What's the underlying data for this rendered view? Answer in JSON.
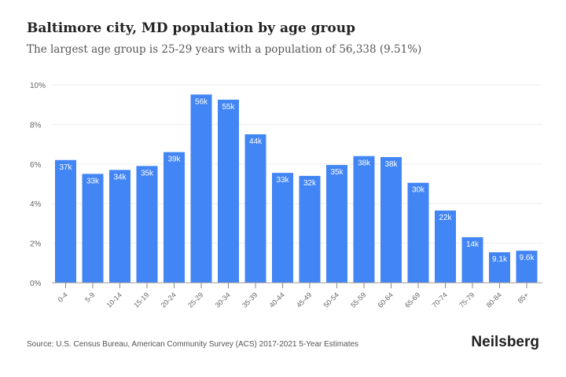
{
  "chart_data": {
    "type": "bar",
    "title": "Baltimore city, MD population by age group",
    "subtitle": "The largest age group is 25-29 years with a population of 56,338 (9.51%)",
    "categories": [
      "0-4",
      "5-9",
      "10-14",
      "15-19",
      "20-24",
      "25-29",
      "30-34",
      "35-39",
      "40-44",
      "45-49",
      "50-54",
      "55-59",
      "60-64",
      "65-69",
      "70-74",
      "75-79",
      "80-84",
      "85+"
    ],
    "values": [
      6.2,
      5.5,
      5.7,
      5.9,
      6.6,
      9.51,
      9.25,
      7.5,
      5.55,
      5.4,
      5.95,
      6.4,
      6.35,
      5.05,
      3.65,
      2.3,
      1.54,
      1.62
    ],
    "data_labels": [
      "37k",
      "33k",
      "34k",
      "35k",
      "39k",
      "56k",
      "55k",
      "44k",
      "33k",
      "32k",
      "35k",
      "38k",
      "38k",
      "30k",
      "22k",
      "14k",
      "9.1k",
      "9.6k"
    ],
    "xlabel": "",
    "ylabel": "",
    "ylim": [
      0,
      10
    ],
    "yticks": [
      "0%",
      "2%",
      "4%",
      "6%",
      "8%",
      "10%"
    ],
    "grid": true,
    "bar_color": "#4285f4"
  },
  "footer": {
    "source": "Source: U.S. Census Bureau, American Community Survey (ACS) 2017-2021 5-Year Estimates",
    "logo": "Neilsberg"
  }
}
